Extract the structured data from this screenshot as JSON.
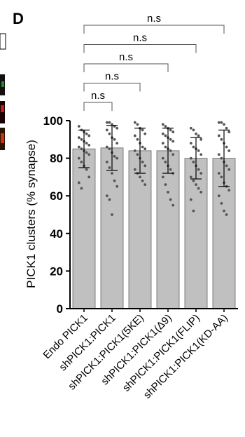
{
  "chart_data": {
    "type": "bar",
    "panel_label": "D",
    "y_label": "PICK1 clusters (% synapse)",
    "categories": [
      "Endo PICK1",
      "shPICK1:PICK1",
      "shPICK1:PICK1(5KE)",
      "shPICK1:PICK1(Δ9)",
      "shPICK1:PICK1(FLIP)",
      "shPICK1:PICK1(KD-AA)"
    ],
    "values": [
      85,
      85.5,
      84,
      84,
      80,
      80
    ],
    "errors": [
      10,
      12,
      12,
      12,
      11,
      15
    ],
    "points": [
      [
        97,
        95,
        94,
        93,
        92,
        91,
        90,
        89,
        88,
        87,
        86,
        85,
        84,
        83,
        82,
        80,
        78,
        76,
        74,
        70,
        67,
        64
      ],
      [
        99,
        99,
        98,
        97,
        96,
        95,
        93,
        91,
        90,
        88,
        86,
        85,
        83,
        81,
        80,
        78,
        75,
        72,
        68,
        65,
        60,
        58,
        50
      ],
      [
        99,
        98,
        96,
        95,
        93,
        92,
        90,
        88,
        86,
        85,
        84,
        82,
        80,
        78,
        76,
        74,
        72,
        70,
        68,
        66
      ],
      [
        98,
        97,
        96,
        95,
        94,
        93,
        92,
        91,
        90,
        89,
        88,
        86,
        85,
        84,
        82,
        80,
        78,
        76,
        74,
        72,
        70,
        66,
        62,
        58,
        55
      ],
      [
        96,
        95,
        93,
        92,
        90,
        88,
        86,
        85,
        84,
        82,
        80,
        78,
        76,
        74,
        72,
        70,
        68,
        66,
        64,
        62,
        58,
        52
      ],
      [
        99,
        99,
        98,
        96,
        94,
        92,
        90,
        88,
        86,
        84,
        82,
        80,
        78,
        76,
        74,
        72,
        70,
        67,
        65,
        63,
        60,
        56,
        52,
        50
      ]
    ],
    "color": "#c0c0c0",
    "point_color": "#555555",
    "ylim": [
      0,
      100
    ],
    "yticks": [
      0,
      20,
      40,
      60,
      80,
      100
    ],
    "comparisons": [
      {
        "label": "n.s",
        "between": [
          "Endo PICK1",
          "shPICK1:PICK1"
        ]
      },
      {
        "label": "n.s",
        "between": [
          "Endo PICK1",
          "shPICK1:PICK1(5KE)"
        ]
      },
      {
        "label": "n.s",
        "between": [
          "Endo PICK1",
          "shPICK1:PICK1(Δ9)"
        ]
      },
      {
        "label": "n.s",
        "between": [
          "Endo PICK1",
          "shPICK1:PICK1(FLIP)"
        ]
      },
      {
        "label": "n.s",
        "between": [
          "Endo PICK1",
          "shPICK1:PICK1(KD-AA)"
        ]
      }
    ]
  }
}
